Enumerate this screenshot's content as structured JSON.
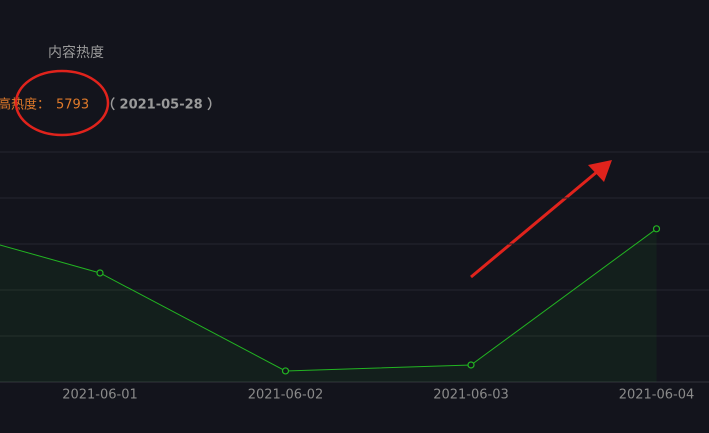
{
  "chart_data": {
    "type": "line",
    "title": "内容热度",
    "peak_label": "高热度：",
    "peak_value": 5793,
    "peak_date": "（ 2021-05-28 ）",
    "categories": [
      null,
      "2021-06-01",
      "2021-06-02",
      "2021-06-03",
      "2021-06-04"
    ],
    "series": [
      {
        "name": "内容热度",
        "color": "#22b422",
        "values": [
          3500,
          2370,
          240,
          370,
          3330
        ]
      }
    ],
    "ylim": [
      0,
      5000
    ],
    "yticks": [
      0,
      1000,
      2000,
      3000,
      4000,
      5000
    ],
    "grid": true
  }
}
